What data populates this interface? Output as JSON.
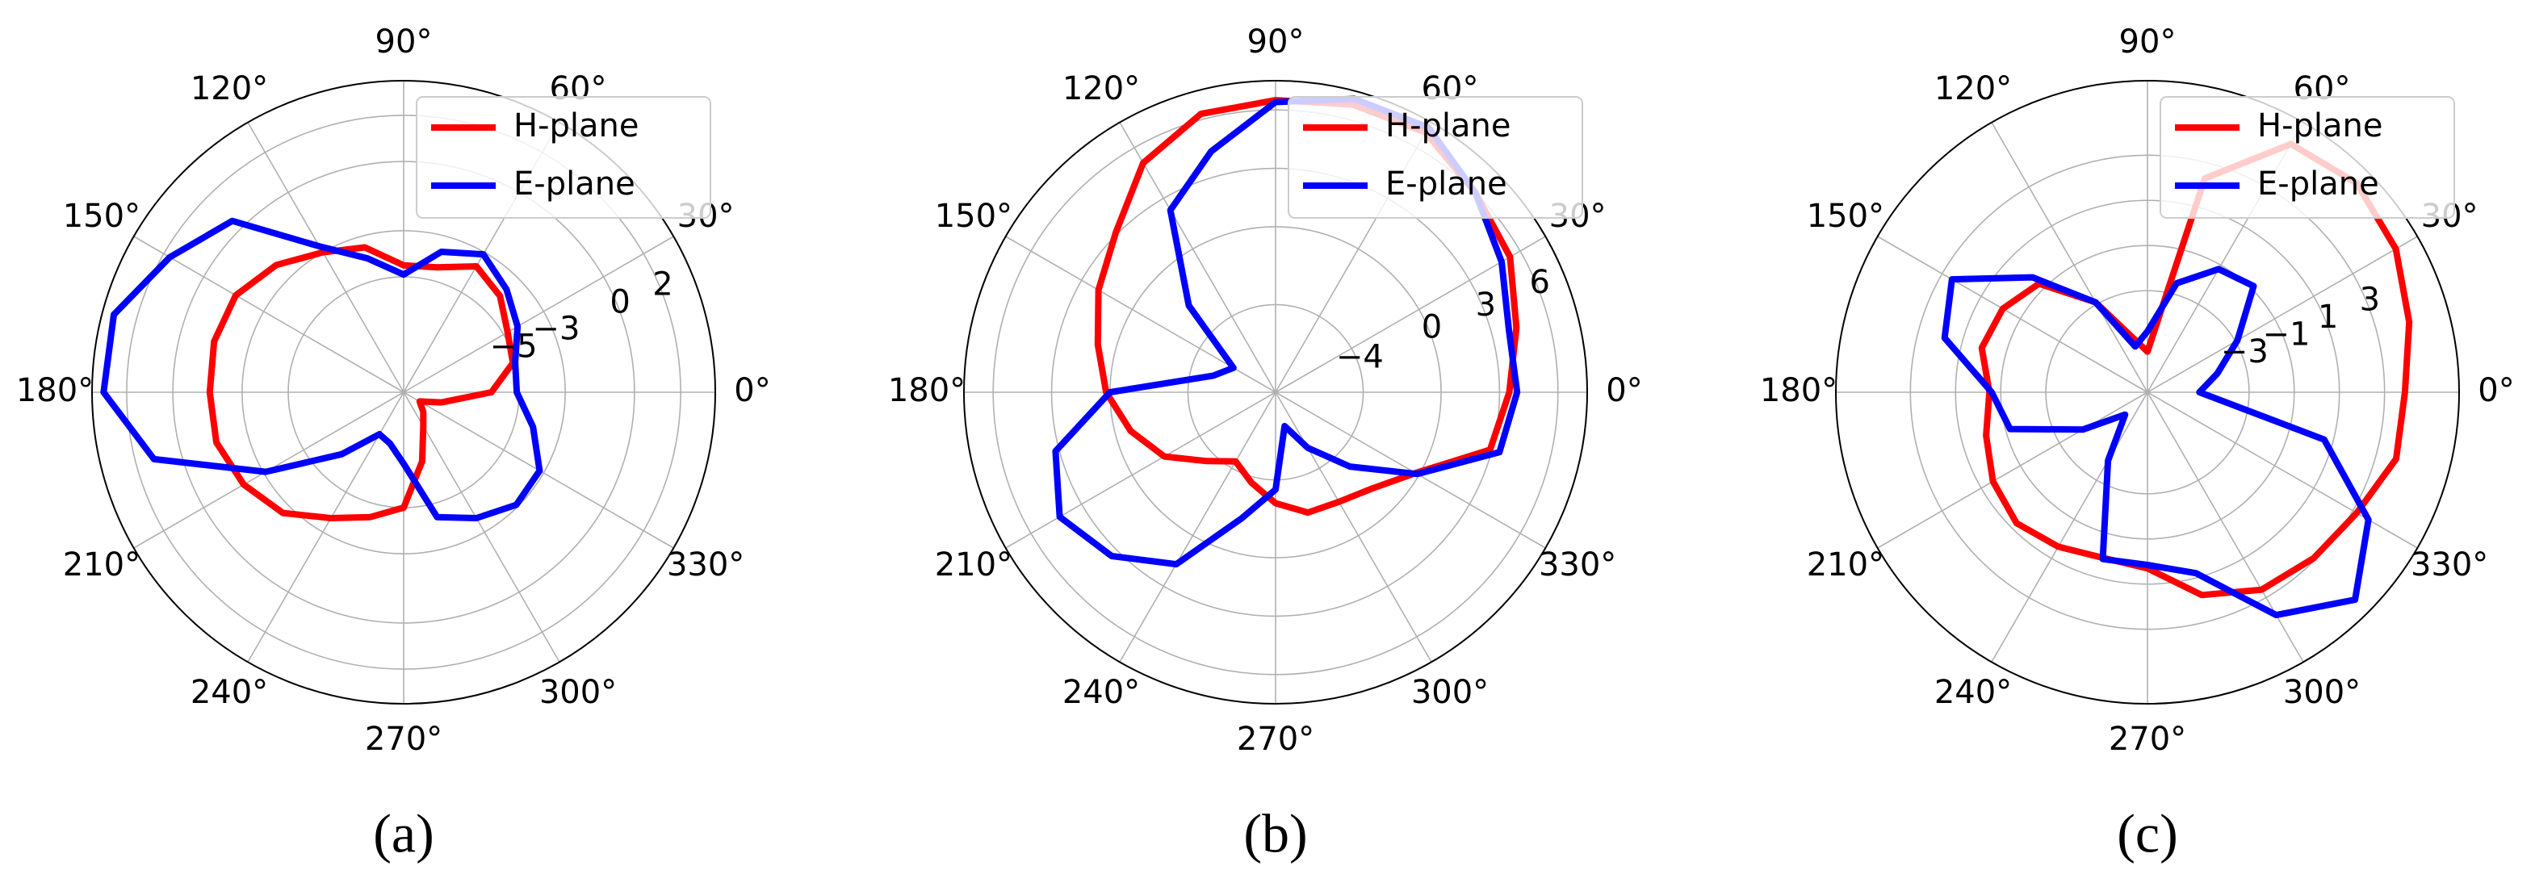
{
  "chart_data": [
    {
      "type": "polar",
      "caption": "(a)",
      "x": [
        0,
        15,
        30,
        45,
        60,
        75,
        90,
        105,
        120,
        135,
        150,
        165,
        180,
        195,
        210,
        225,
        240,
        255,
        270,
        285,
        300,
        315,
        330,
        345
      ],
      "xlim": [
        0,
        360
      ],
      "xticks": [
        {
          "value": 0,
          "label": "0°"
        },
        {
          "value": 30,
          "label": "30°"
        },
        {
          "value": 60,
          "label": "60°"
        },
        {
          "value": 90,
          "label": "90°"
        },
        {
          "value": 120,
          "label": "120°"
        },
        {
          "value": 150,
          "label": "150°"
        },
        {
          "value": 180,
          "label": "180°"
        },
        {
          "value": 210,
          "label": "210°"
        },
        {
          "value": 240,
          "label": "240°"
        },
        {
          "value": 270,
          "label": "270°"
        },
        {
          "value": 300,
          "label": "300°"
        },
        {
          "value": 330,
          "label": "330°"
        }
      ],
      "ylim": [
        -10,
        3.5
      ],
      "yticks": [
        {
          "value": -5,
          "label": "−5"
        },
        {
          "value": -3,
          "label": "−3"
        },
        0,
        2
      ],
      "grid": true,
      "legend": "upper right",
      "series": [
        {
          "name": "H-plane",
          "color": "#ff0000",
          "values": [
            -6.2,
            -5.1,
            -4.8,
            -4.1,
            -3.7,
            -4.4,
            -4.5,
            -3.5,
            -3.0,
            -2.2,
            -1.6,
            -1.5,
            -1.6,
            -1.6,
            -2.0,
            -2.6,
            -3.7,
            -4.4,
            -5.0,
            -6.9,
            -8.3,
            -8.8,
            -9.2,
            -8.3
          ]
        },
        {
          "name": "E-plane",
          "color": "#0000ff",
          "values": [
            -5.1,
            -5.0,
            -4.3,
            -3.7,
            -3.1,
            -3.7,
            -4.9,
            -4.0,
            -2.7,
            0.5,
            1.7,
            3.0,
            3.0,
            1.2,
            -3.1,
            -6.2,
            -7.9,
            -7.7,
            -6.9,
            -4.4,
            -3.7,
            -3.1,
            -3.2,
            -4.2
          ]
        }
      ]
    },
    {
      "type": "polar",
      "caption": "(b)",
      "x": [
        0,
        15,
        30,
        45,
        60,
        75,
        90,
        105,
        120,
        135,
        150,
        165,
        180,
        195,
        210,
        225,
        240,
        255,
        270,
        285,
        300,
        315,
        330,
        345
      ],
      "xlim": [
        0,
        360
      ],
      "xticks": [
        {
          "value": 0,
          "label": "0°"
        },
        {
          "value": 30,
          "label": "30°"
        },
        {
          "value": 60,
          "label": "60°"
        },
        {
          "value": 90,
          "label": "90°"
        },
        {
          "value": 120,
          "label": "120°"
        },
        {
          "value": 150,
          "label": "150°"
        },
        {
          "value": 180,
          "label": "180°"
        },
        {
          "value": 210,
          "label": "210°"
        },
        {
          "value": 240,
          "label": "240°"
        },
        {
          "value": 270,
          "label": "270°"
        },
        {
          "value": 300,
          "label": "300°"
        },
        {
          "value": 330,
          "label": "330°"
        }
      ],
      "ylim": [
        -8.5,
        7.5
      ],
      "yticks": [
        {
          "value": -4,
          "label": "−4"
        },
        0,
        3,
        6
      ],
      "grid": true,
      "legend": "upper right",
      "series": [
        {
          "name": "H-plane",
          "color": "#ff0000",
          "values": [
            3.5,
            4.3,
            5.4,
            6.0,
            6.9,
            6.8,
            6.5,
            6.3,
            5.1,
            3.1,
            2.0,
            0.95,
            0.2,
            -0.8,
            -1.9,
            -3.5,
            -4.4,
            -3.7,
            -2.8,
            -2.1,
            -2.0,
            -1.5,
            -0.2,
            2.9
          ]
        },
        {
          "name": "E-plane",
          "color": "#0000ff",
          "values": [
            3.9,
            3.9,
            4.9,
            6.0,
            7.2,
            7.1,
            6.4,
            4.3,
            2.3,
            -2.2,
            -6.0,
            -5.2,
            0.0,
            3.2,
            4.3,
            3.4,
            1.7,
            -1.8,
            -3.5,
            -6.7,
            -5.2,
            -3.1,
            -0.1,
            3.4
          ]
        }
      ]
    },
    {
      "type": "polar",
      "caption": "(c)",
      "x": [
        0,
        15,
        30,
        45,
        60,
        75,
        90,
        105,
        120,
        135,
        150,
        165,
        180,
        195,
        210,
        225,
        240,
        255,
        270,
        285,
        300,
        315,
        330,
        345
      ],
      "xlim": [
        0,
        360
      ],
      "xticks": [
        {
          "value": 0,
          "label": "0°"
        },
        {
          "value": 30,
          "label": "30°"
        },
        {
          "value": 60,
          "label": "60°"
        },
        {
          "value": 90,
          "label": "90°"
        },
        {
          "value": 120,
          "label": "120°"
        },
        {
          "value": 150,
          "label": "150°"
        },
        {
          "value": 180,
          "label": "180°"
        },
        {
          "value": 210,
          "label": "210°"
        },
        {
          "value": 240,
          "label": "240°"
        },
        {
          "value": 270,
          "label": "270°"
        },
        {
          "value": 300,
          "label": "300°"
        },
        {
          "value": 330,
          "label": "330°"
        }
      ],
      "ylim": [
        -7.5,
        6.3
      ],
      "yticks": [
        {
          "value": -3,
          "label": "−3"
        },
        {
          "value": -1,
          "label": "−1"
        },
        1,
        3
      ],
      "grid": true,
      "legend": "upper right",
      "series": [
        {
          "name": "H-plane",
          "color": "#ff0000",
          "values": [
            3.9,
            4.5,
            5.2,
            5.6,
            5.2,
            2.3,
            -5.7,
            -5.0,
            -2.9,
            -0.7,
            -0.1,
            0.1,
            -0.5,
            -0.1,
            0.4,
            0.7,
            0.4,
            0.1,
            0.3,
            1.8,
            2.6,
            2.9,
            3.2,
            3.9
          ]
        },
        {
          "name": "E-plane",
          "color": "#0000ff",
          "values": [
            -5.2,
            -4.3,
            -2.9,
            -0.85,
            -1.2,
            -2.5,
            -4.8,
            -5.4,
            -2.9,
            -0.3,
            2.5,
            1.8,
            -0.6,
            -1.2,
            -4.2,
            -6.1,
            -4.0,
            0.15,
            0.15,
            0.8,
            3.9,
            5.5,
            3.8,
            0.6
          ]
        }
      ]
    }
  ]
}
